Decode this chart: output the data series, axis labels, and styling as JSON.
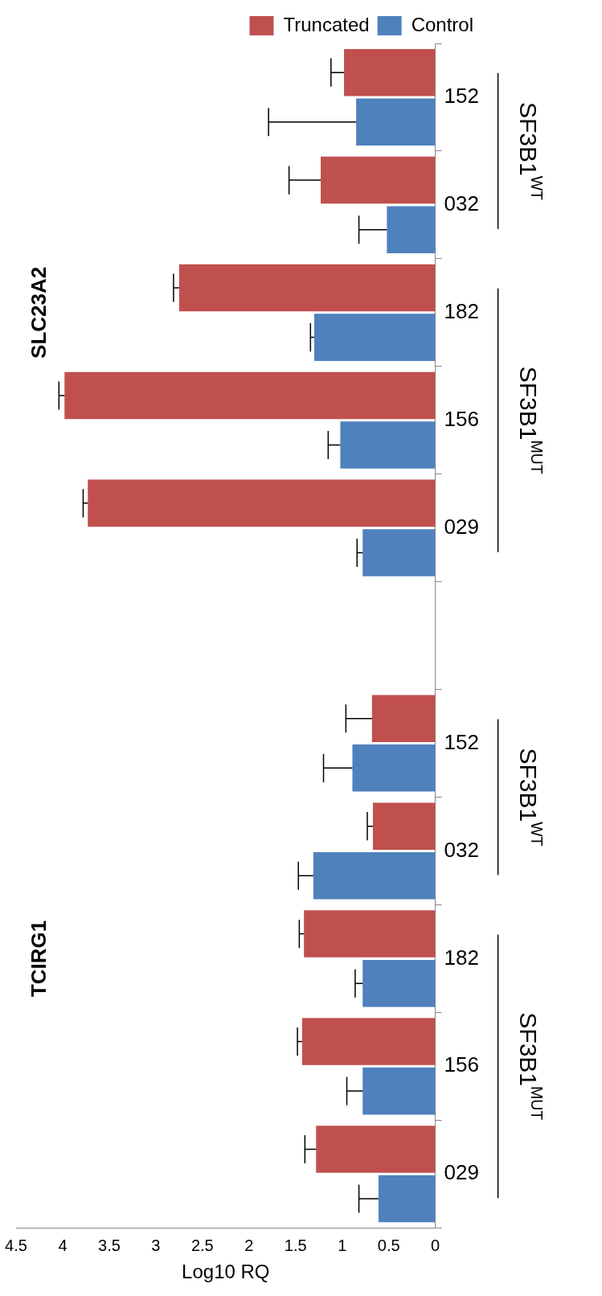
{
  "chart_data": {
    "type": "bar",
    "orientation": "horizontal",
    "xlabel": "Log10 RQ",
    "legend": "top right",
    "grid": false,
    "categories": [
      "152",
      "032",
      "182",
      "156",
      "029",
      null,
      "152",
      "032",
      "182",
      "156",
      "029"
    ],
    "xlim": [
      4.5,
      0
    ],
    "xticks": [
      4.5,
      4,
      3.5,
      3,
      2.5,
      2,
      1.5,
      1,
      0.5,
      0
    ],
    "series": [
      {
        "name": "Truncated",
        "color": "#c0504d",
        "values": [
          0.98,
          1.23,
          2.75,
          3.98,
          3.73,
          null,
          0.68,
          0.67,
          1.41,
          1.43,
          1.28
        ],
        "errors": [
          [
            0.98,
            1.12
          ],
          [
            1.23,
            1.57
          ],
          [
            2.75,
            2.81
          ],
          [
            3.98,
            4.04
          ],
          [
            3.73,
            3.78
          ],
          null,
          [
            0.68,
            0.96
          ],
          [
            0.67,
            0.73
          ],
          [
            1.41,
            1.46
          ],
          [
            1.43,
            1.48
          ],
          [
            1.28,
            1.4
          ]
        ]
      },
      {
        "name": "Control",
        "color": "#4f81bd",
        "values": [
          0.85,
          0.52,
          1.3,
          1.02,
          0.78,
          null,
          0.89,
          1.31,
          0.78,
          0.78,
          0.61
        ],
        "errors": [
          [
            0.85,
            1.79
          ],
          [
            0.52,
            0.82
          ],
          [
            1.3,
            1.34
          ],
          [
            1.02,
            1.15
          ],
          [
            0.78,
            0.84
          ],
          null,
          [
            0.89,
            1.2
          ],
          [
            1.31,
            1.47
          ],
          [
            0.78,
            0.86
          ],
          [
            0.78,
            0.95
          ],
          [
            0.61,
            0.82
          ]
        ]
      }
    ],
    "annotations": [
      "SLC23A2",
      "TCIRG1",
      "SF3B1$^{WT}$",
      "SF3B1$^{MUT}$",
      "SF3B1$^{WT}$",
      "SF3B1$^{MUT}$"
    ]
  }
}
